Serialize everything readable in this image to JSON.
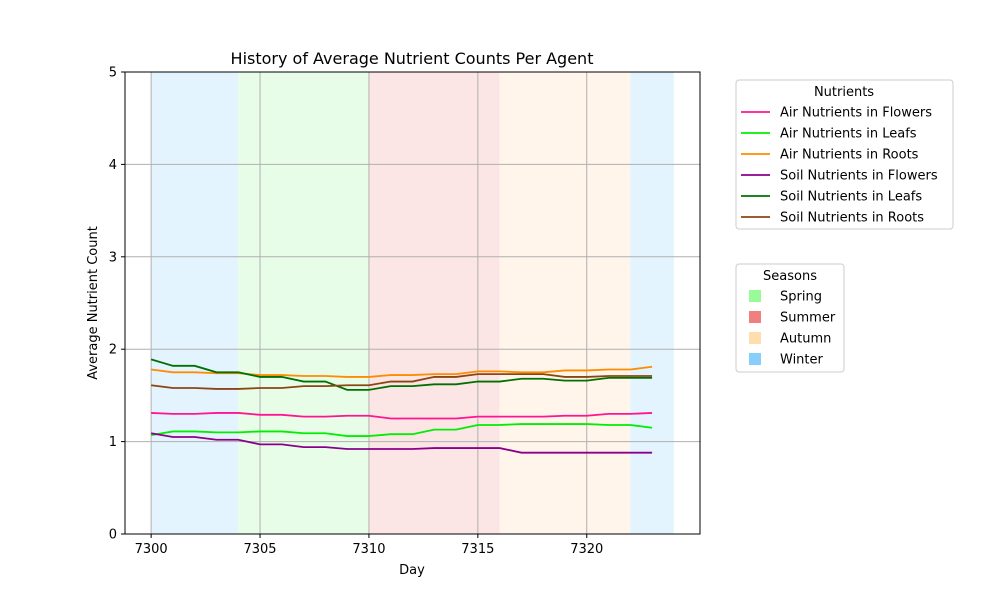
{
  "chart_data": {
    "type": "line",
    "title": "History of Average Nutrient Counts Per Agent",
    "xlabel": "Day",
    "ylabel": "Average Nutrient Count",
    "xlim": [
      7298.8,
      7325.2
    ],
    "ylim": [
      0,
      5
    ],
    "xticks": [
      7300,
      7305,
      7310,
      7315,
      7320
    ],
    "yticks": [
      0,
      1,
      2,
      3,
      4,
      5
    ],
    "grid": true,
    "x": [
      7300,
      7301,
      7302,
      7303,
      7304,
      7305,
      7306,
      7307,
      7308,
      7309,
      7310,
      7311,
      7312,
      7313,
      7314,
      7315,
      7316,
      7317,
      7318,
      7319,
      7320,
      7321,
      7322,
      7323
    ],
    "series": [
      {
        "name": "Air Nutrients in Flowers",
        "color": "#ff1493",
        "values": [
          1.31,
          1.3,
          1.3,
          1.31,
          1.31,
          1.29,
          1.29,
          1.27,
          1.27,
          1.28,
          1.28,
          1.25,
          1.25,
          1.25,
          1.25,
          1.27,
          1.27,
          1.27,
          1.27,
          1.28,
          1.28,
          1.3,
          1.3,
          1.31
        ]
      },
      {
        "name": "Air Nutrients in Leafs",
        "color": "#00ee00",
        "values": [
          1.07,
          1.11,
          1.11,
          1.1,
          1.1,
          1.11,
          1.11,
          1.09,
          1.09,
          1.06,
          1.06,
          1.08,
          1.08,
          1.13,
          1.13,
          1.18,
          1.18,
          1.19,
          1.19,
          1.19,
          1.19,
          1.18,
          1.18,
          1.15
        ]
      },
      {
        "name": "Air Nutrients in Roots",
        "color": "#ff8c00",
        "values": [
          1.78,
          1.75,
          1.75,
          1.74,
          1.74,
          1.72,
          1.72,
          1.71,
          1.71,
          1.7,
          1.7,
          1.72,
          1.72,
          1.73,
          1.73,
          1.76,
          1.76,
          1.75,
          1.75,
          1.77,
          1.77,
          1.78,
          1.78,
          1.81
        ]
      },
      {
        "name": "Soil Nutrients in Flowers",
        "color": "#8b008b",
        "values": [
          1.09,
          1.05,
          1.05,
          1.02,
          1.02,
          0.97,
          0.97,
          0.94,
          0.94,
          0.92,
          0.92,
          0.92,
          0.92,
          0.93,
          0.93,
          0.93,
          0.93,
          0.88,
          0.88,
          0.88,
          0.88,
          0.88,
          0.88,
          0.88
        ]
      },
      {
        "name": "Soil Nutrients in Leafs",
        "color": "#007000",
        "values": [
          1.89,
          1.82,
          1.82,
          1.75,
          1.75,
          1.7,
          1.7,
          1.65,
          1.65,
          1.56,
          1.56,
          1.6,
          1.6,
          1.62,
          1.62,
          1.65,
          1.65,
          1.68,
          1.68,
          1.66,
          1.66,
          1.69,
          1.69,
          1.69
        ]
      },
      {
        "name": "Soil Nutrients in Roots",
        "color": "#8b4513",
        "values": [
          1.61,
          1.58,
          1.58,
          1.57,
          1.57,
          1.58,
          1.58,
          1.6,
          1.6,
          1.61,
          1.61,
          1.65,
          1.65,
          1.7,
          1.7,
          1.73,
          1.73,
          1.73,
          1.73,
          1.7,
          1.7,
          1.71,
          1.71,
          1.71
        ]
      }
    ],
    "seasons_bands": [
      {
        "season": "Winter",
        "start": 7300,
        "end": 7304
      },
      {
        "season": "Spring",
        "start": 7304,
        "end": 7310
      },
      {
        "season": "Summer",
        "start": 7310,
        "end": 7316
      },
      {
        "season": "Autumn",
        "start": 7316,
        "end": 7322
      },
      {
        "season": "Winter",
        "start": 7322,
        "end": 7324
      }
    ],
    "legends": [
      {
        "title": "Nutrients",
        "placement": "outside-right-top"
      },
      {
        "title": "Seasons",
        "placement": "outside-right-middle",
        "entries": [
          {
            "label": "Spring",
            "color": "#98fb98"
          },
          {
            "label": "Summer",
            "color": "#f08080"
          },
          {
            "label": "Autumn",
            "color": "#ffdead"
          },
          {
            "label": "Winter",
            "color": "#87cefa"
          }
        ]
      }
    ],
    "season_band_colors": {
      "Spring": "#e8fde8",
      "Summer": "#fce5e5",
      "Autumn": "#fff5eb",
      "Winter": "#e4f4fe"
    }
  }
}
